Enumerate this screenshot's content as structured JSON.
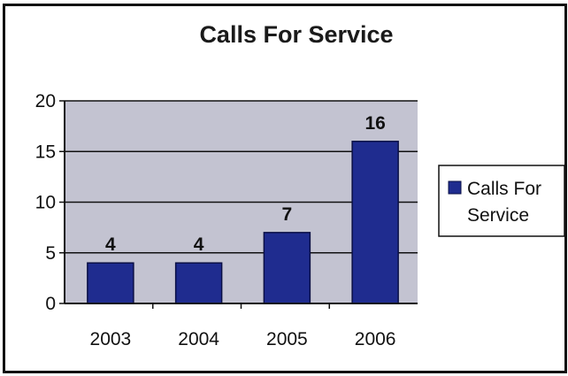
{
  "chart_data": {
    "type": "bar",
    "title": "Calls For Service",
    "categories": [
      "2003",
      "2004",
      "2005",
      "2006"
    ],
    "series": [
      {
        "name": "Calls For Service",
        "values": [
          4,
          4,
          7,
          16
        ]
      }
    ],
    "data_labels": [
      "4",
      "4",
      "7",
      "16"
    ],
    "y_ticks": [
      "0",
      "5",
      "10",
      "15",
      "20"
    ],
    "ylim": [
      0,
      20
    ],
    "grid": true,
    "legend": {
      "position": "right",
      "lines": [
        "Calls For",
        "Service"
      ]
    },
    "colors": {
      "bar": "#1f2c8f",
      "bar_edge": "#0a0f45",
      "plot_background": "#c3c3d1",
      "grid": "#111111"
    }
  }
}
